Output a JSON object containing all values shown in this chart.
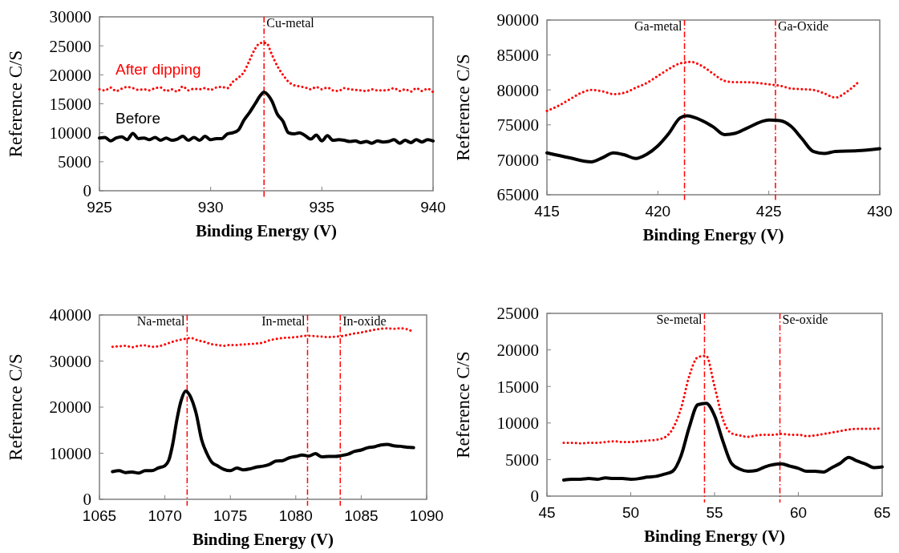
{
  "chart_data": [
    {
      "type": "line",
      "xlabel": "Binding Energy (V)",
      "ylabel": "Reference C/S",
      "xlim": [
        925,
        940
      ],
      "xticks": [
        925,
        930,
        935,
        940
      ],
      "ylim": [
        0,
        30000
      ],
      "yticks": [
        0,
        5000,
        10000,
        15000,
        20000,
        25000,
        30000
      ],
      "grid": false,
      "marker": "none",
      "series": [
        {
          "name": "After dipping",
          "color": "#ff0000",
          "line_style": "dotted",
          "x": [
            925,
            925.25,
            925.5,
            925.75,
            926,
            926.25,
            926.5,
            926.75,
            927,
            927.25,
            927.5,
            927.75,
            928,
            928.25,
            928.5,
            928.75,
            929,
            929.25,
            929.5,
            929.75,
            930,
            930.25,
            930.5,
            930.75,
            931,
            931.25,
            931.5,
            931.75,
            932,
            932.25,
            932.5,
            932.75,
            933,
            933.25,
            933.5,
            933.75,
            934,
            934.25,
            934.5,
            934.75,
            935,
            935.25,
            935.5,
            935.75,
            936,
            936.25,
            936.5,
            936.75,
            937,
            937.25,
            937.5,
            937.75,
            938,
            938.25,
            938.5,
            938.75,
            939,
            939.25,
            939.5,
            939.75,
            940
          ],
          "values": [
            17500,
            17300,
            17800,
            17200,
            17600,
            17900,
            17700,
            17400,
            17500,
            17300,
            17700,
            17800,
            17200,
            17500,
            17100,
            18000,
            17300,
            17600,
            17500,
            17700,
            17400,
            17800,
            17900,
            17700,
            18800,
            19500,
            20500,
            22500,
            24500,
            25500,
            25500,
            23500,
            21500,
            20000,
            18800,
            18200,
            18000,
            17800,
            17500,
            17900,
            17500,
            17800,
            17300,
            17200,
            17700,
            17500,
            17400,
            17300,
            17200,
            17500,
            17300,
            17300,
            17400,
            17700,
            17200,
            17500,
            17100,
            17700,
            17200,
            17600,
            17000
          ]
        },
        {
          "name": "Before",
          "color": "#000000",
          "line_style": "solid",
          "x": [
            925,
            925.25,
            925.5,
            925.75,
            926,
            926.25,
            926.5,
            926.75,
            927,
            927.25,
            927.5,
            927.75,
            928,
            928.25,
            928.5,
            928.75,
            929,
            929.25,
            929.5,
            929.75,
            930,
            930.25,
            930.5,
            930.75,
            931,
            931.25,
            931.5,
            931.75,
            932,
            932.25,
            932.4,
            932.5,
            932.75,
            933,
            933.25,
            933.5,
            933.75,
            934,
            934.25,
            934.5,
            934.75,
            935,
            935.25,
            935.5,
            935.75,
            936,
            936.25,
            936.5,
            936.75,
            937,
            937.25,
            937.5,
            937.75,
            938,
            938.25,
            938.5,
            938.75,
            939,
            939.25,
            939.5,
            939.75,
            940
          ],
          "values": [
            9100,
            9200,
            8600,
            9100,
            9300,
            8800,
            9900,
            9000,
            9100,
            8800,
            9200,
            8700,
            9100,
            8700,
            8900,
            9400,
            8700,
            9200,
            8700,
            9400,
            8800,
            9000,
            9000,
            9800,
            10000,
            10500,
            12200,
            13500,
            15000,
            16500,
            17000,
            16800,
            15500,
            13200,
            12000,
            10000,
            9800,
            10000,
            9500,
            8900,
            9600,
            8600,
            9500,
            8700,
            8800,
            8700,
            8500,
            8600,
            8300,
            8500,
            8200,
            8600,
            8400,
            8500,
            8800,
            8200,
            8700,
            8300,
            8800,
            8400,
            8800,
            8600
          ]
        }
      ],
      "ref_lines": [
        {
          "axis": "x",
          "value": 932.4,
          "label": "Cu-metal",
          "color": "#ff0000",
          "line_style": "dashed"
        }
      ]
    },
    {
      "type": "line",
      "xlabel": "Binding Energy (V)",
      "ylabel": "Reference C/S",
      "xlim": [
        415,
        430
      ],
      "xticks": [
        415,
        420,
        425,
        430
      ],
      "ylim": [
        65000,
        90000
      ],
      "yticks": [
        65000,
        70000,
        75000,
        80000,
        85000,
        90000
      ],
      "grid": false,
      "marker": "none",
      "series": [
        {
          "color": "#ff0000",
          "line_style": "dotted",
          "x": [
            415,
            415.5,
            416,
            416.5,
            417,
            417.5,
            418,
            418.5,
            419,
            419.5,
            420,
            420.5,
            421,
            421.5,
            422,
            422.5,
            423,
            423.5,
            424,
            424.5,
            425,
            425.5,
            426,
            426.5,
            427,
            427.5,
            428,
            428.5,
            429
          ],
          "values": [
            77000,
            77700,
            78600,
            79500,
            80000,
            79800,
            79400,
            79600,
            80300,
            81000,
            82000,
            83000,
            83800,
            84000,
            83400,
            82300,
            81300,
            81100,
            81100,
            81000,
            80800,
            80600,
            80200,
            80100,
            80000,
            79500,
            78900,
            79700,
            81000
          ]
        },
        {
          "color": "#000000",
          "line_style": "solid",
          "x": [
            415,
            416,
            417,
            417.5,
            418,
            418.5,
            419,
            419.5,
            420,
            420.5,
            421,
            421.3,
            422,
            422.5,
            423,
            423.5,
            424,
            425,
            425.5,
            426,
            426.5,
            427,
            427.5,
            428,
            429,
            430
          ],
          "values": [
            71000,
            70300,
            69700,
            70300,
            71000,
            70700,
            70200,
            70800,
            72000,
            73800,
            76000,
            76300,
            75600,
            74700,
            73600,
            73800,
            74500,
            75700,
            75600,
            74800,
            73000,
            71200,
            70900,
            71200,
            71300,
            71600
          ]
        }
      ],
      "ref_lines": [
        {
          "axis": "x",
          "value": 421.2,
          "label": "Ga-metal",
          "color": "#ff0000",
          "line_style": "dashed"
        },
        {
          "axis": "x",
          "value": 425.3,
          "label": "Ga-Oxide",
          "color": "#ff0000",
          "line_style": "dashed"
        }
      ]
    },
    {
      "type": "line",
      "xlabel": "Binding Energy (V)",
      "ylabel": "Reference C/S",
      "xlim": [
        1065,
        1090
      ],
      "xticks": [
        1065,
        1070,
        1075,
        1080,
        1085,
        1090
      ],
      "ylim": [
        0,
        40000
      ],
      "yticks": [
        0,
        10000,
        20000,
        30000,
        40000
      ],
      "grid": false,
      "marker": "none",
      "series": [
        {
          "color": "#ff0000",
          "line_style": "dotted",
          "x": [
            1066,
            1066.5,
            1067,
            1067.5,
            1068,
            1068.5,
            1069,
            1069.5,
            1070,
            1070.5,
            1071,
            1071.5,
            1072,
            1072.5,
            1073,
            1073.5,
            1074,
            1074.5,
            1075,
            1075.5,
            1076,
            1076.5,
            1077,
            1077.5,
            1078,
            1078.5,
            1079,
            1079.5,
            1080,
            1080.5,
            1081,
            1081.5,
            1082,
            1082.5,
            1083,
            1083.5,
            1084,
            1084.5,
            1085,
            1085.5,
            1086,
            1086.5,
            1087,
            1087.5,
            1088,
            1088.5,
            1089
          ],
          "values": [
            33100,
            33200,
            33300,
            33000,
            33300,
            33400,
            33100,
            33200,
            33600,
            34100,
            34500,
            34800,
            35000,
            34500,
            34200,
            33700,
            33500,
            33300,
            33500,
            33500,
            33600,
            33700,
            33800,
            34000,
            34500,
            34800,
            35000,
            35100,
            35200,
            35400,
            35500,
            35400,
            35300,
            35200,
            35300,
            35400,
            35700,
            36000,
            36200,
            36500,
            36800,
            37000,
            37100,
            37000,
            37100,
            36900,
            36300
          ]
        },
        {
          "color": "#000000",
          "line_style": "solid",
          "x": [
            1066,
            1066.5,
            1067,
            1067.5,
            1068,
            1068.5,
            1069,
            1069.5,
            1070,
            1070.3,
            1070.6,
            1070.9,
            1071.2,
            1071.6,
            1072,
            1072.4,
            1072.8,
            1073.2,
            1073.6,
            1074,
            1074.5,
            1075,
            1075.5,
            1076,
            1076.5,
            1077,
            1077.5,
            1078,
            1078.5,
            1079,
            1079.5,
            1080,
            1080.5,
            1081,
            1081.5,
            1082,
            1082.5,
            1083,
            1083.5,
            1084,
            1084.5,
            1085,
            1085.5,
            1086,
            1086.5,
            1087,
            1087.5,
            1088,
            1088.5,
            1089
          ],
          "values": [
            6000,
            6200,
            5800,
            5900,
            5700,
            6200,
            6200,
            6800,
            7300,
            8500,
            12000,
            17000,
            21000,
            23500,
            22000,
            18500,
            13000,
            10000,
            8000,
            7300,
            6500,
            6200,
            6800,
            6400,
            6600,
            7000,
            7200,
            7600,
            8300,
            8400,
            9000,
            9300,
            9600,
            9400,
            9900,
            9200,
            9300,
            9300,
            9500,
            9800,
            10400,
            10700,
            11200,
            11400,
            11800,
            11900,
            11600,
            11500,
            11300,
            11200
          ]
        }
      ],
      "ref_lines": [
        {
          "axis": "x",
          "value": 1071.7,
          "label": "Na-metal",
          "color": "#ff0000",
          "line_style": "dashed"
        },
        {
          "axis": "x",
          "value": 1080.9,
          "label": "In-metal",
          "color": "#ff0000",
          "line_style": "dashed"
        },
        {
          "axis": "x",
          "value": 1083.4,
          "label": "In-oxide",
          "color": "#ff0000",
          "line_style": "dashed"
        }
      ]
    },
    {
      "type": "line",
      "xlabel": "Binding Energy (V)",
      "ylabel": "Reference C/S",
      "xlim": [
        45,
        65
      ],
      "xticks": [
        45,
        50,
        55,
        60,
        65
      ],
      "ylim": [
        0,
        25000
      ],
      "yticks": [
        0,
        5000,
        10000,
        15000,
        20000,
        25000
      ],
      "grid": false,
      "marker": "none",
      "series": [
        {
          "color": "#ff0000",
          "line_style": "dotted",
          "x": [
            46,
            46.5,
            47,
            47.5,
            48,
            48.5,
            49,
            49.5,
            50,
            50.5,
            51,
            51.5,
            52,
            52.5,
            53,
            53.5,
            54,
            54.5,
            55,
            55.5,
            56,
            56.5,
            57,
            57.5,
            58,
            58.5,
            59,
            59.5,
            60,
            60.5,
            61,
            61.5,
            62,
            62.5,
            63,
            63.5,
            64,
            64.5,
            65
          ],
          "values": [
            7300,
            7300,
            7200,
            7300,
            7300,
            7400,
            7500,
            7400,
            7400,
            7500,
            7600,
            7700,
            8000,
            9200,
            12000,
            16500,
            19000,
            19200,
            15000,
            10500,
            8600,
            8300,
            8100,
            8300,
            8400,
            8400,
            8500,
            8400,
            8400,
            8200,
            8300,
            8500,
            8700,
            8900,
            9100,
            9200,
            9200,
            9200,
            9300
          ]
        },
        {
          "color": "#000000",
          "line_style": "solid",
          "x": [
            46,
            46.5,
            47,
            47.5,
            48,
            48.5,
            49,
            49.5,
            50,
            50.5,
            51,
            51.5,
            52,
            52.5,
            53,
            53.5,
            54,
            54.5,
            55,
            55.5,
            56,
            56.5,
            57,
            57.5,
            58,
            58.5,
            59,
            59.5,
            60,
            60.5,
            61,
            61.5,
            62,
            62.5,
            63,
            63.5,
            64,
            64.5,
            65
          ],
          "values": [
            2200,
            2300,
            2300,
            2400,
            2300,
            2500,
            2400,
            2400,
            2300,
            2400,
            2600,
            2700,
            3000,
            3400,
            5500,
            9500,
            12500,
            12700,
            11000,
            7500,
            4500,
            3700,
            3400,
            3500,
            4000,
            4300,
            4400,
            4100,
            3800,
            3400,
            3400,
            3300,
            3900,
            4500,
            5300,
            4800,
            4400,
            3900,
            4000
          ]
        }
      ],
      "ref_lines": [
        {
          "axis": "x",
          "value": 54.4,
          "label": "Se-metal",
          "color": "#ff0000",
          "line_style": "dashed"
        },
        {
          "axis": "x",
          "value": 58.9,
          "label": "Se-oxide",
          "color": "#ff0000",
          "line_style": "dashed"
        }
      ]
    }
  ]
}
